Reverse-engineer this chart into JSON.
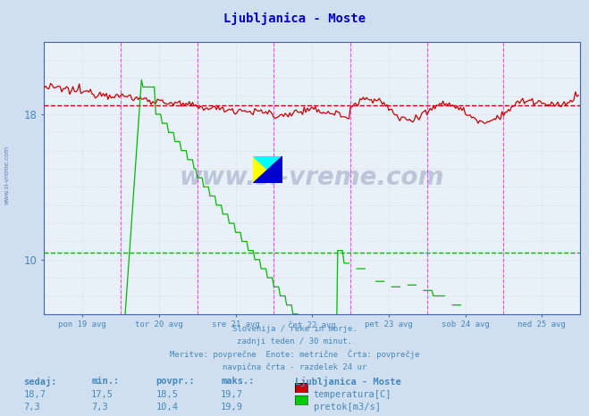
{
  "title": "Ljubljanica - Moste",
  "bg_color": "#d0dff0",
  "plot_bg_color": "#e8f0f8",
  "title_color": "#0000cc",
  "axis_color": "#4466aa",
  "grid_color": "#c0c8d8",
  "text_color": "#4488bb",
  "subtitle_lines": [
    "Slovenija / reke in morje.",
    "zadnji teden / 30 minut.",
    "Meritve: povprečne  Enote: metrične  Črta: povprečje",
    "navpična črta - razdelek 24 ur"
  ],
  "legend_title": "Ljubljanica - Moste",
  "legend_labels": [
    "temperatura[C]",
    "pretok[m3/s]"
  ],
  "legend_colors": [
    "#cc0000",
    "#00cc00"
  ],
  "stats_headers": [
    "sedaj:",
    "min.:",
    "povpr.:",
    "maks.:"
  ],
  "stats_temp": [
    "18,7",
    "17,5",
    "18,5",
    "19,7"
  ],
  "stats_flow": [
    "7,3",
    "7,3",
    "10,4",
    "19,9"
  ],
  "xlabels": [
    "pon 19 avg",
    "tor 20 avg",
    "sre 21 avg",
    "čet 22 avg",
    "pet 23 avg",
    "sob 24 avg",
    "ned 25 avg"
  ],
  "ylim": [
    7.0,
    22.0
  ],
  "yticks": [
    10,
    18
  ],
  "temp_avg": 18.5,
  "flow_avg": 10.4,
  "n_points": 336,
  "watermark": "www.si-vreme.com",
  "temp_color": "#cc0000",
  "flow_color": "#00bb00",
  "avg_temp_color": "#cc0000",
  "avg_flow_color": "#00bb00",
  "vline_color": "#ff44ff",
  "hgrid_color": "#e0c8d8",
  "vgrid_color": "#c8d0e0"
}
